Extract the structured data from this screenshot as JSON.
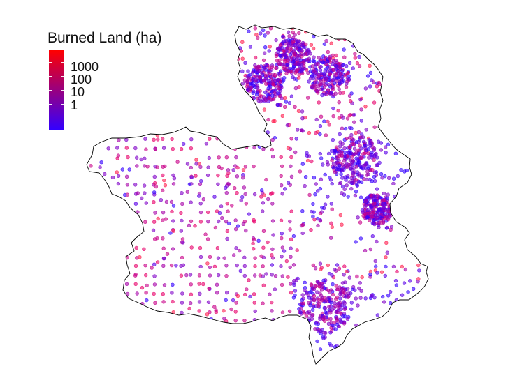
{
  "legend": {
    "title": "Burned Land (ha)",
    "labels": [
      "1000",
      "100",
      "10",
      "1"
    ],
    "values": [
      1000,
      100,
      10,
      1
    ],
    "scale": "log10",
    "colors": {
      "low": "#3300ff",
      "high": "#ff0000"
    }
  },
  "map": {
    "fill": "#ffffff",
    "border_color": "#000000",
    "point_palette": [
      "#3300ff",
      "#5a00e8",
      "#8000c8",
      "#a600a8",
      "#c80088",
      "#e8006a",
      "#ff2050"
    ],
    "point_opacity": 0.6,
    "point_density": "dense",
    "clusters": [
      "north",
      "east",
      "south-east"
    ]
  }
}
